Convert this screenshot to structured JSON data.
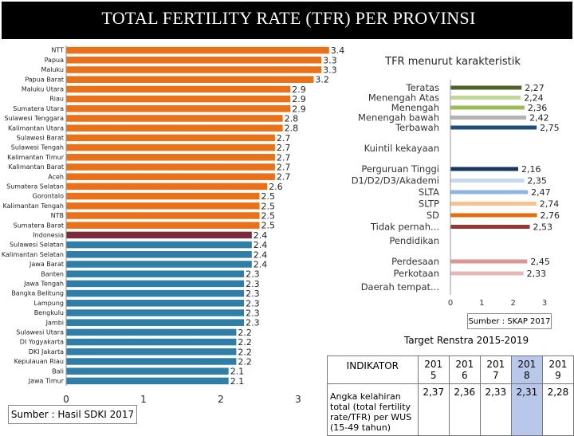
{
  "title": "TOTAL FERTILITY RATE (TFR) PER PROVINSI",
  "source_left": "Sumber : Hasil  SDKI 2017",
  "source_right": "Sumber : SKAP 2017",
  "colors": {
    "orange": "#e8711a",
    "maroon": "#7b2a3c",
    "teal": "#2e7ea8"
  },
  "chart_data": [
    {
      "type": "bar",
      "orientation": "horizontal",
      "categories": [
        "NTT",
        "Papua",
        "Maluku",
        "Papua Barat",
        "Maluku Utara",
        "Riau",
        "Sumatera Utara",
        "Sulawesi Tenggara",
        "Kalimantan Utara",
        "Sulawesi Barat",
        "Sulawesi Tengah",
        "Kalimantan Timur",
        "Kalimantan Barat",
        "Aceh",
        "Sumatera Selatan",
        "Gorontalo",
        "Kalimantan Tengah",
        "NTB",
        "Sumatera Barat",
        "Indonesia",
        "Sulawesi Selatan",
        "Kalimantan Selatan",
        "Jawa Barat",
        "Banten",
        "Jawa Tengah",
        "Bangka Belitung",
        "Lampung",
        "Bengkulu",
        "Jambi",
        "Sulawesi Utara",
        "DI Yogyakarta",
        "DKI Jakarta",
        "Kepulauan Riau",
        "Bali",
        "Jawa Timur"
      ],
      "values": [
        3.4,
        3.3,
        3.3,
        3.2,
        2.9,
        2.9,
        2.9,
        2.8,
        2.8,
        2.7,
        2.7,
        2.7,
        2.7,
        2.7,
        2.6,
        2.5,
        2.5,
        2.5,
        2.5,
        2.4,
        2.4,
        2.4,
        2.4,
        2.3,
        2.3,
        2.3,
        2.3,
        2.3,
        2.3,
        2.2,
        2.2,
        2.2,
        2.2,
        2.1,
        2.1
      ],
      "value_labels": [
        "3.4",
        "3.3",
        "3.3",
        "3.2",
        "2.9",
        "2.9",
        "2.9",
        "2.8",
        "2.8",
        "2.7",
        "2.7",
        "2.7",
        "2.7",
        "2.7",
        "2.6",
        "2.5",
        "2.5",
        "2.5",
        "2.5",
        "2.4",
        "2.4",
        "2.4",
        "2.4",
        "2.3",
        "2.3",
        "2.3",
        "2.3",
        "2.3",
        "2.3",
        "2.2",
        "2.2",
        "2.2",
        "2.2",
        "2.1",
        "2.1"
      ],
      "bar_colors": [
        "#e8711a",
        "#e8711a",
        "#e8711a",
        "#e8711a",
        "#e8711a",
        "#e8711a",
        "#e8711a",
        "#e8711a",
        "#e8711a",
        "#e8711a",
        "#e8711a",
        "#e8711a",
        "#e8711a",
        "#e8711a",
        "#e8711a",
        "#e8711a",
        "#e8711a",
        "#e8711a",
        "#e8711a",
        "#7b2a3c",
        "#2e7ea8",
        "#2e7ea8",
        "#2e7ea8",
        "#2e7ea8",
        "#2e7ea8",
        "#2e7ea8",
        "#2e7ea8",
        "#2e7ea8",
        "#2e7ea8",
        "#2e7ea8",
        "#2e7ea8",
        "#2e7ea8",
        "#2e7ea8",
        "#2e7ea8",
        "#2e7ea8"
      ],
      "xlim": [
        0,
        3
      ],
      "xticks": [
        "0",
        "1",
        "2",
        "3"
      ]
    },
    {
      "type": "bar",
      "orientation": "horizontal",
      "title": "TFR menurut karakteristik",
      "groups": [
        {
          "heading": "Kuintil kekayaan",
          "categories": [
            "Teratas",
            "Menengah Atas",
            "Menengah",
            "Menengah bawah",
            "Terbawah"
          ],
          "values": [
            2.27,
            2.24,
            2.36,
            2.42,
            2.75
          ],
          "value_labels": [
            "2,27",
            "2,24",
            "2,36",
            "2,42",
            "2,75"
          ],
          "colors": [
            "#4f6228",
            "#c3d69b",
            "#9bbb59",
            "#b3b3b3",
            "#1f4e79"
          ]
        },
        {
          "heading": "Pendidikan",
          "categories": [
            "Perguruan Tinggi",
            "D1/D2/D3/Akademi",
            "SLTA",
            "SLTP",
            "SD",
            "Tidak pernah..."
          ],
          "values": [
            2.16,
            2.35,
            2.47,
            2.74,
            2.76,
            2.53
          ],
          "value_labels": [
            "2,16",
            "2,35",
            "2,47",
            "2,74",
            "2,76",
            "2,53"
          ],
          "colors": [
            "#17375e",
            "#c6d9f1",
            "#8eb4e3",
            "#fac090",
            "#e46c0a",
            "#953735"
          ]
        },
        {
          "heading": "Daerah tempat...",
          "categories": [
            "Perdesaan",
            "Perkotaan"
          ],
          "values": [
            2.45,
            2.33
          ],
          "value_labels": [
            "2,45",
            "2,33"
          ],
          "colors": [
            "#d99694",
            "#e6b9b8"
          ]
        }
      ],
      "xlim": [
        0,
        3
      ],
      "xticks": [
        "0",
        "1",
        "2",
        "3"
      ]
    }
  ],
  "renstra": {
    "title": "Target Renstra 2015-2019",
    "header": "INDIKATOR",
    "indicator": "Angka kelahiran total (total fertility rate/TFR) per WUS (15-49 tahun)",
    "years": [
      {
        "line1": "201",
        "line2": "5",
        "value": "2,37"
      },
      {
        "line1": "201",
        "line2": "6",
        "value": "2,36"
      },
      {
        "line1": "201",
        "line2": "7",
        "value": "2,33"
      },
      {
        "line1": "201",
        "line2": "8",
        "value": "2,31"
      },
      {
        "line1": "201",
        "line2": "9",
        "value": "2,28"
      }
    ]
  }
}
